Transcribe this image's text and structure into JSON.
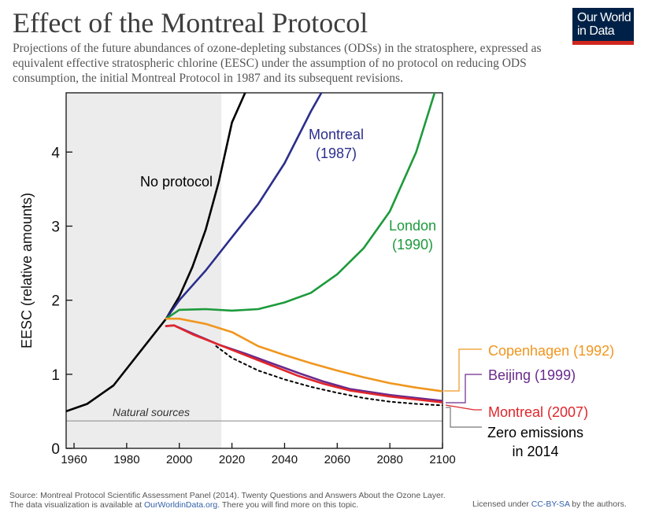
{
  "header": {
    "title": "Effect of the Montreal Protocol",
    "subtitle": "Projections of the future abundances of ozone-depleting substances (ODSs) in the stratosphere, expressed as equivalent effective stratospheric chlorine (EESC) under the assumption of no protocol on reducing ODS consumption, the initial Montreal Protocol in 1987 and its subsequent revisions.",
    "logo_line1": "Our World",
    "logo_line2": "in Data"
  },
  "footer": {
    "source": "Source: Montreal Protocol Scientific Assessment Panel (2014). Twenty Questions and Answers About the Ozone Layer.",
    "note_prefix": "The data visualization is available at ",
    "note_link": "OurWorldinData.org",
    "note_suffix": ". There you will find more on this topic.",
    "license_prefix": "Licensed under ",
    "license_link": "CC-BY-SA",
    "license_suffix": " by the authors."
  },
  "colors": {
    "no_protocol": "#000000",
    "montreal_1987": "#2b2e8c",
    "london_1990": "#1d9a3b",
    "copenhagen_1992": "#f0961e",
    "beijing_1999": "#6a2a8c",
    "montreal_2007": "#e0262b",
    "zero_emissions": "#000000",
    "natural": "#888888",
    "shade": "#ececec"
  },
  "chart_data": {
    "type": "line",
    "title": "Effect of the Montreal Protocol",
    "xlabel": "",
    "ylabel": "EESC (relative amounts)",
    "xlim": [
      1957,
      2100
    ],
    "ylim": [
      0,
      4.8
    ],
    "xticks": [
      1960,
      1980,
      2000,
      2020,
      2040,
      2060,
      2080,
      2100
    ],
    "yticks": [
      0,
      1,
      2,
      3,
      4
    ],
    "shaded_range": [
      1957,
      2016
    ],
    "reference_line": {
      "label": "Natural sources",
      "y": 0.37
    },
    "series": [
      {
        "name": "No protocol",
        "key": "no_protocol",
        "label_lines": [
          "No protocol"
        ],
        "dashed": false,
        "x": [
          1957,
          1965,
          1975,
          1985,
          1995,
          2000,
          2005,
          2010,
          2015,
          2020,
          2025
        ],
        "y": [
          0.5,
          0.6,
          0.85,
          1.3,
          1.75,
          2.05,
          2.45,
          2.95,
          3.6,
          4.4,
          4.8
        ]
      },
      {
        "name": "Montreal (1987)",
        "key": "montreal_1987",
        "label_lines": [
          "Montreal",
          "(1987)"
        ],
        "dashed": false,
        "x": [
          1995,
          2000,
          2010,
          2020,
          2030,
          2040,
          2045,
          2050,
          2054
        ],
        "y": [
          1.75,
          2.0,
          2.4,
          2.85,
          3.3,
          3.85,
          4.2,
          4.55,
          4.8
        ]
      },
      {
        "name": "London (1990)",
        "key": "london_1990",
        "label_lines": [
          "London",
          "(1990)"
        ],
        "dashed": false,
        "x": [
          1995,
          2000,
          2010,
          2020,
          2030,
          2040,
          2050,
          2060,
          2070,
          2080,
          2090,
          2097
        ],
        "y": [
          1.75,
          1.87,
          1.88,
          1.86,
          1.88,
          1.97,
          2.1,
          2.35,
          2.7,
          3.2,
          4.0,
          4.8
        ]
      },
      {
        "name": "Copenhagen (1992)",
        "key": "copenhagen_1992",
        "label_lines": [
          "Copenhagen (1992)"
        ],
        "dashed": false,
        "x": [
          1995,
          2000,
          2010,
          2020,
          2030,
          2040,
          2050,
          2060,
          2070,
          2080,
          2090,
          2100
        ],
        "y": [
          1.75,
          1.75,
          1.68,
          1.57,
          1.38,
          1.26,
          1.15,
          1.05,
          0.96,
          0.88,
          0.82,
          0.77
        ]
      },
      {
        "name": "Beijing (1999)",
        "key": "beijing_1999",
        "label_lines": [
          "Beijing (1999)"
        ],
        "dashed": false,
        "x": [
          1995,
          1998,
          2005,
          2015,
          2025,
          2035,
          2045,
          2055,
          2065,
          2080,
          2100
        ],
        "y": [
          1.65,
          1.66,
          1.55,
          1.4,
          1.28,
          1.15,
          1.02,
          0.9,
          0.8,
          0.72,
          0.64
        ]
      },
      {
        "name": "Montreal (2007)",
        "key": "montreal_2007",
        "label_lines": [
          "Montreal (2007)"
        ],
        "dashed": false,
        "x": [
          1995,
          1998,
          2005,
          2015,
          2025,
          2035,
          2045,
          2055,
          2065,
          2080,
          2100
        ],
        "y": [
          1.65,
          1.66,
          1.54,
          1.4,
          1.26,
          1.12,
          0.98,
          0.87,
          0.78,
          0.7,
          0.62
        ]
      },
      {
        "name": "Zero emissions in 2014",
        "key": "zero_emissions",
        "label_lines": [
          "Zero emissions",
          "in 2014"
        ],
        "dashed": true,
        "x": [
          2014,
          2020,
          2030,
          2040,
          2050,
          2060,
          2070,
          2080,
          2090,
          2100
        ],
        "y": [
          1.38,
          1.22,
          1.05,
          0.93,
          0.83,
          0.75,
          0.68,
          0.63,
          0.6,
          0.58
        ]
      }
    ]
  }
}
